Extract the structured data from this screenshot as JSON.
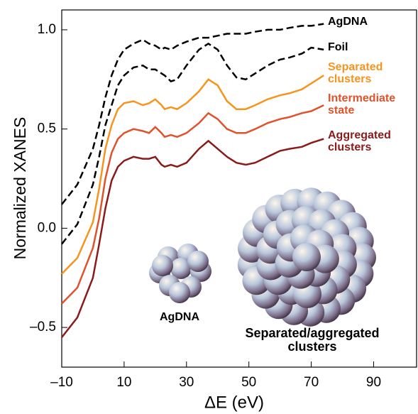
{
  "chart_data": {
    "type": "line",
    "x_label": "ΔE (eV)",
    "y_label": "Normalized XANES",
    "x": [
      -10,
      -5,
      0,
      2,
      4,
      6,
      8,
      10,
      13,
      16,
      18,
      20,
      22,
      23,
      25,
      27,
      30,
      34,
      37,
      40,
      43,
      46,
      49,
      52,
      56,
      60,
      63,
      67,
      70,
      74
    ],
    "series": [
      {
        "name": "AgDNA",
        "color": "#000000",
        "style": "dashed",
        "values": [
          0.12,
          0.22,
          0.4,
          0.52,
          0.66,
          0.77,
          0.85,
          0.9,
          0.93,
          0.95,
          0.93,
          0.92,
          0.9,
          0.91,
          0.9,
          0.92,
          0.94,
          0.96,
          0.96,
          0.97,
          0.98,
          0.98,
          0.98,
          0.99,
          1.0,
          1.0,
          1.01,
          1.02,
          1.02,
          1.03
        ]
      },
      {
        "name": "Foil",
        "color": "#000000",
        "style": "dashed",
        "values": [
          -0.08,
          0.02,
          0.22,
          0.36,
          0.52,
          0.62,
          0.72,
          0.77,
          0.81,
          0.82,
          0.8,
          0.8,
          0.78,
          0.77,
          0.74,
          0.75,
          0.82,
          0.9,
          0.93,
          0.9,
          0.82,
          0.76,
          0.75,
          0.78,
          0.82,
          0.85,
          0.86,
          0.88,
          0.91,
          0.9
        ]
      },
      {
        "name": "Separated clusters",
        "color": "#f7941d",
        "style": "solid",
        "values": [
          -0.23,
          -0.15,
          0.03,
          0.2,
          0.4,
          0.52,
          0.6,
          0.63,
          0.64,
          0.62,
          0.63,
          0.65,
          0.62,
          0.6,
          0.61,
          0.6,
          0.63,
          0.69,
          0.75,
          0.72,
          0.64,
          0.6,
          0.6,
          0.62,
          0.65,
          0.67,
          0.68,
          0.7,
          0.73,
          0.77
        ]
      },
      {
        "name": "Intermediate state",
        "color": "#e0522a",
        "style": "solid",
        "values": [
          -0.38,
          -0.3,
          -0.1,
          0.05,
          0.25,
          0.38,
          0.45,
          0.48,
          0.5,
          0.49,
          0.48,
          0.51,
          0.48,
          0.46,
          0.47,
          0.46,
          0.48,
          0.53,
          0.58,
          0.55,
          0.5,
          0.48,
          0.48,
          0.5,
          0.53,
          0.55,
          0.56,
          0.58,
          0.59,
          0.62
        ]
      },
      {
        "name": "Aggregated clusters",
        "color": "#8b1a1a",
        "style": "solid",
        "values": [
          -0.55,
          -0.45,
          -0.25,
          -0.08,
          0.1,
          0.24,
          0.31,
          0.34,
          0.36,
          0.35,
          0.35,
          0.36,
          0.32,
          0.31,
          0.32,
          0.31,
          0.33,
          0.4,
          0.44,
          0.4,
          0.36,
          0.33,
          0.32,
          0.33,
          0.36,
          0.39,
          0.4,
          0.41,
          0.43,
          0.45
        ]
      }
    ],
    "xlim": [
      -10,
      104
    ],
    "ylim": [
      -0.7,
      1.1
    ],
    "xticks": [
      {
        "value": -10,
        "label": "–10"
      },
      10,
      30,
      50,
      70,
      90
    ],
    "yticks": [
      {
        "value": -0.5,
        "label": "–0.5"
      },
      {
        "value": 0,
        "label": "0.0"
      },
      0.5,
      {
        "value": 1,
        "label": "1.0"
      }
    ],
    "annotations": [
      "AgDNA",
      "Separated/aggregated clusters"
    ]
  }
}
